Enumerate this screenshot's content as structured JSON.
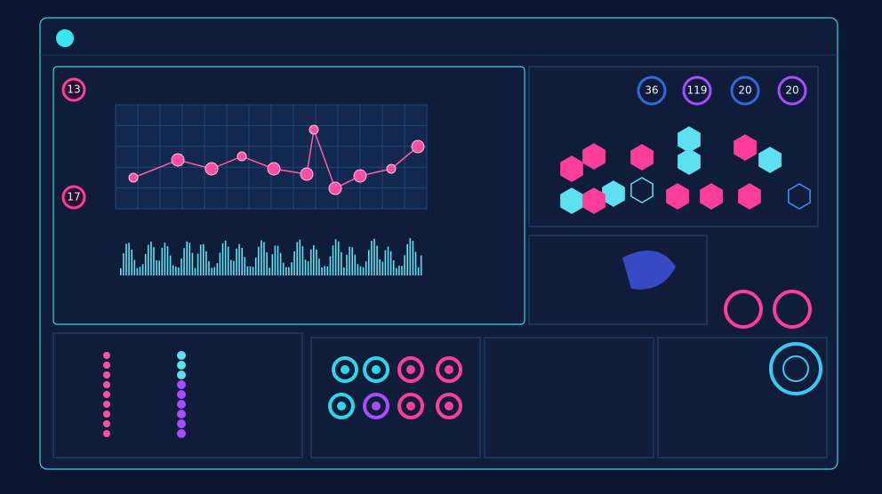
{
  "left_badges": [
    "13",
    "17"
  ],
  "status_rings": [
    "36",
    "119",
    "20",
    "20"
  ]
}
